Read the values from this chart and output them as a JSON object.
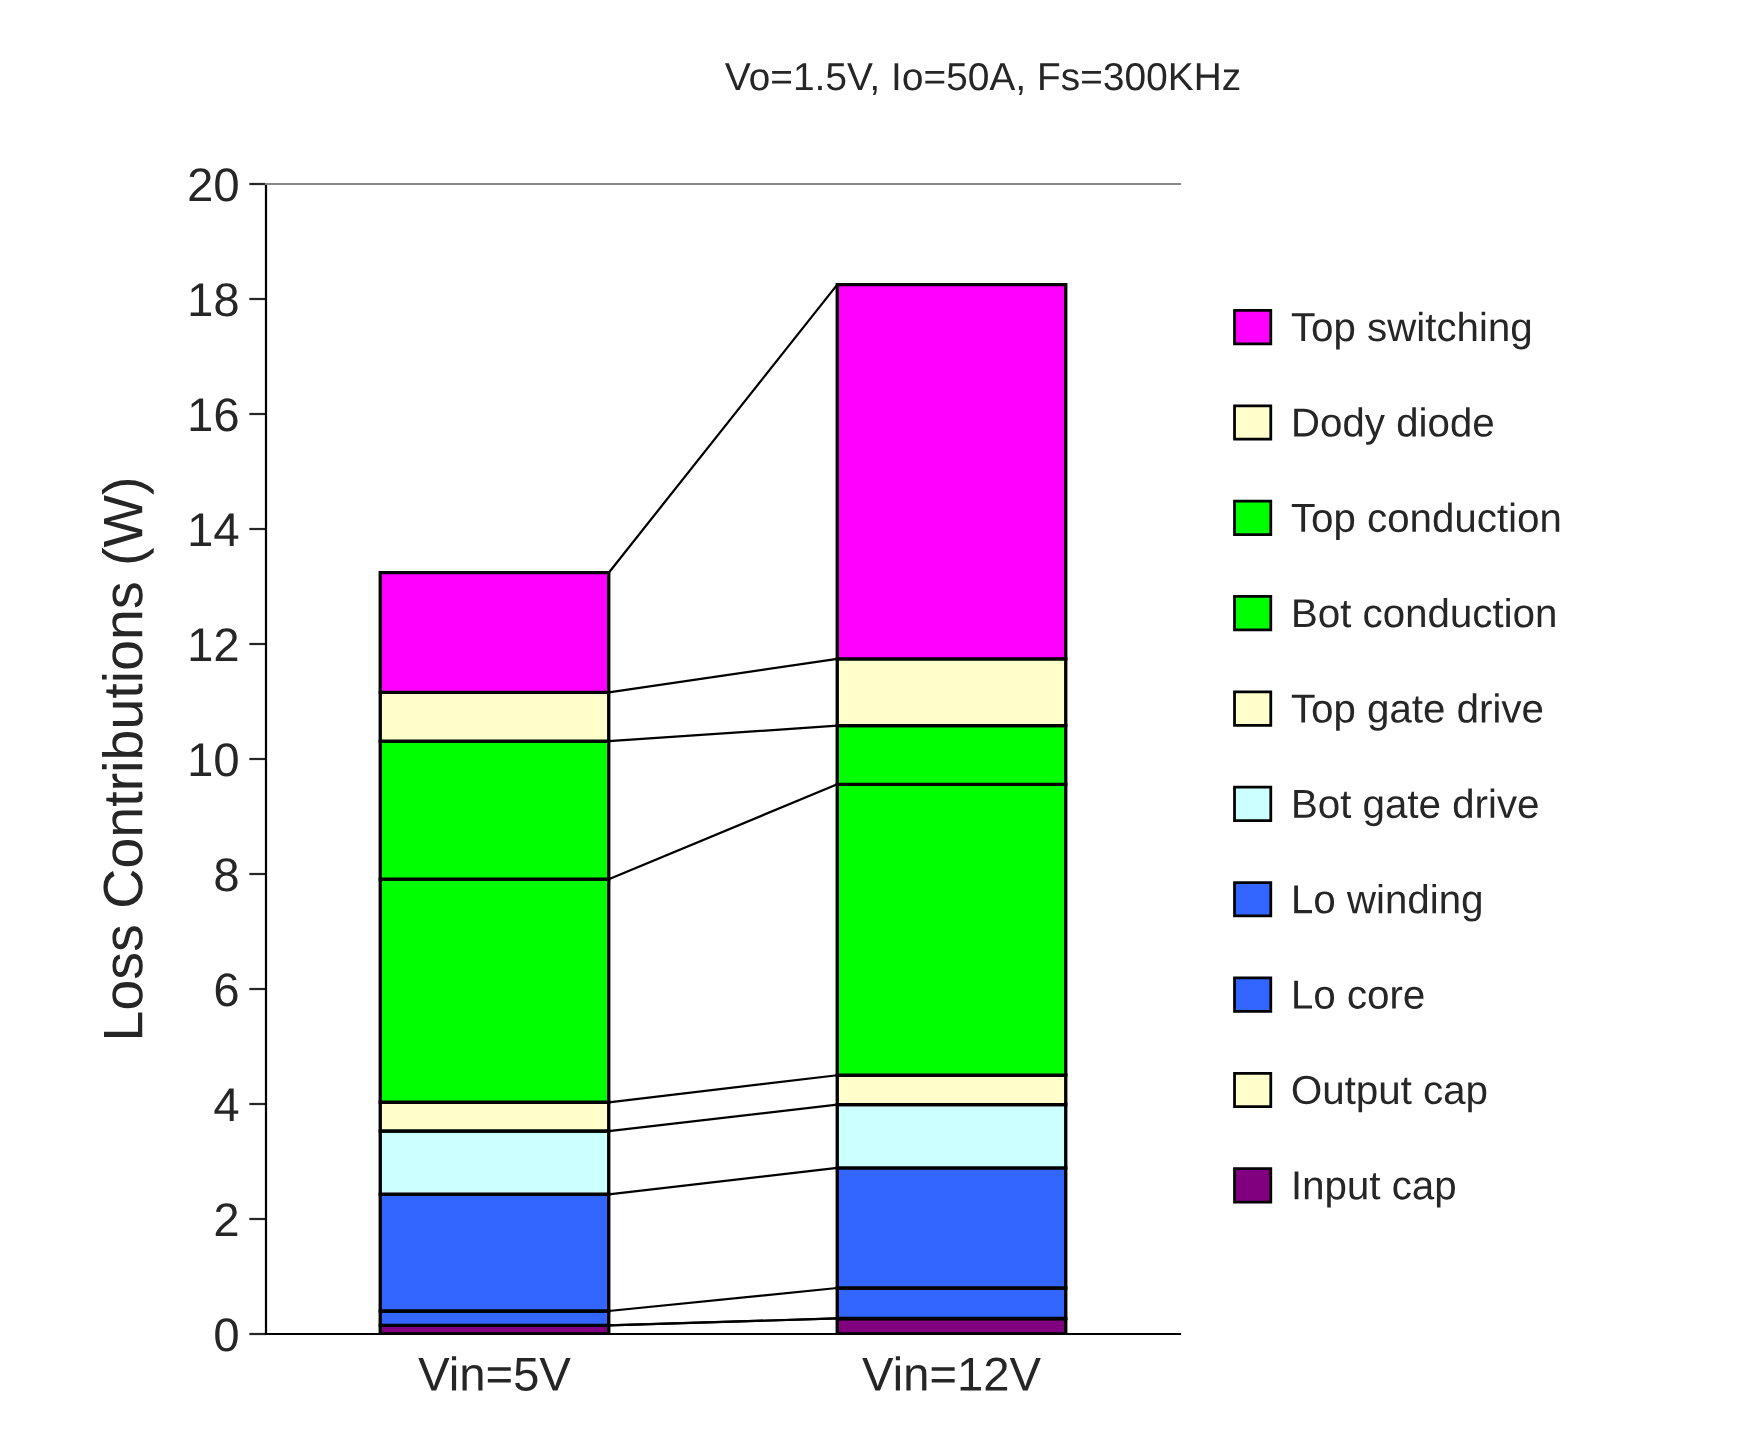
{
  "chart_data": {
    "type": "bar",
    "stacked": true,
    "title": "Vo=1.5V, Io=50A, Fs=300KHz",
    "ylabel": "Loss Contributions (W)",
    "categories": [
      "Vin=5V",
      "Vin=12V"
    ],
    "series": [
      {
        "name": "Input cap",
        "color": "#800080",
        "values": [
          0.15,
          0.27
        ]
      },
      {
        "name": "Output cap",
        "color": "#ffffcc",
        "values": [
          null,
          null
        ]
      },
      {
        "name": "Lo core",
        "color": "#3366ff",
        "values": [
          0.25,
          0.53
        ]
      },
      {
        "name": "Lo winding",
        "color": "#3366ff",
        "values": [
          2.03,
          2.09
        ]
      },
      {
        "name": "Bot gate drive",
        "color": "#ccffff",
        "values": [
          1.1,
          1.1
        ]
      },
      {
        "name": "Top gate drive",
        "color": "#ffffcc",
        "values": [
          0.5,
          0.51
        ]
      },
      {
        "name": "Bot conduction",
        "color": "#00ff00",
        "values": [
          3.88,
          5.06
        ]
      },
      {
        "name": "Top conduction",
        "color": "#00ff00",
        "values": [
          2.4,
          1.02
        ]
      },
      {
        "name": "Dody diode",
        "color": "#ffffcc",
        "values": [
          0.85,
          1.16
        ]
      },
      {
        "name": "Top switching",
        "color": "#ff00ff",
        "values": [
          2.08,
          6.51
        ]
      }
    ],
    "ylim": [
      0,
      20
    ],
    "yticks": [
      0,
      2,
      4,
      6,
      8,
      10,
      12,
      14,
      16,
      18,
      20
    ],
    "grid": false,
    "legend": "right"
  }
}
